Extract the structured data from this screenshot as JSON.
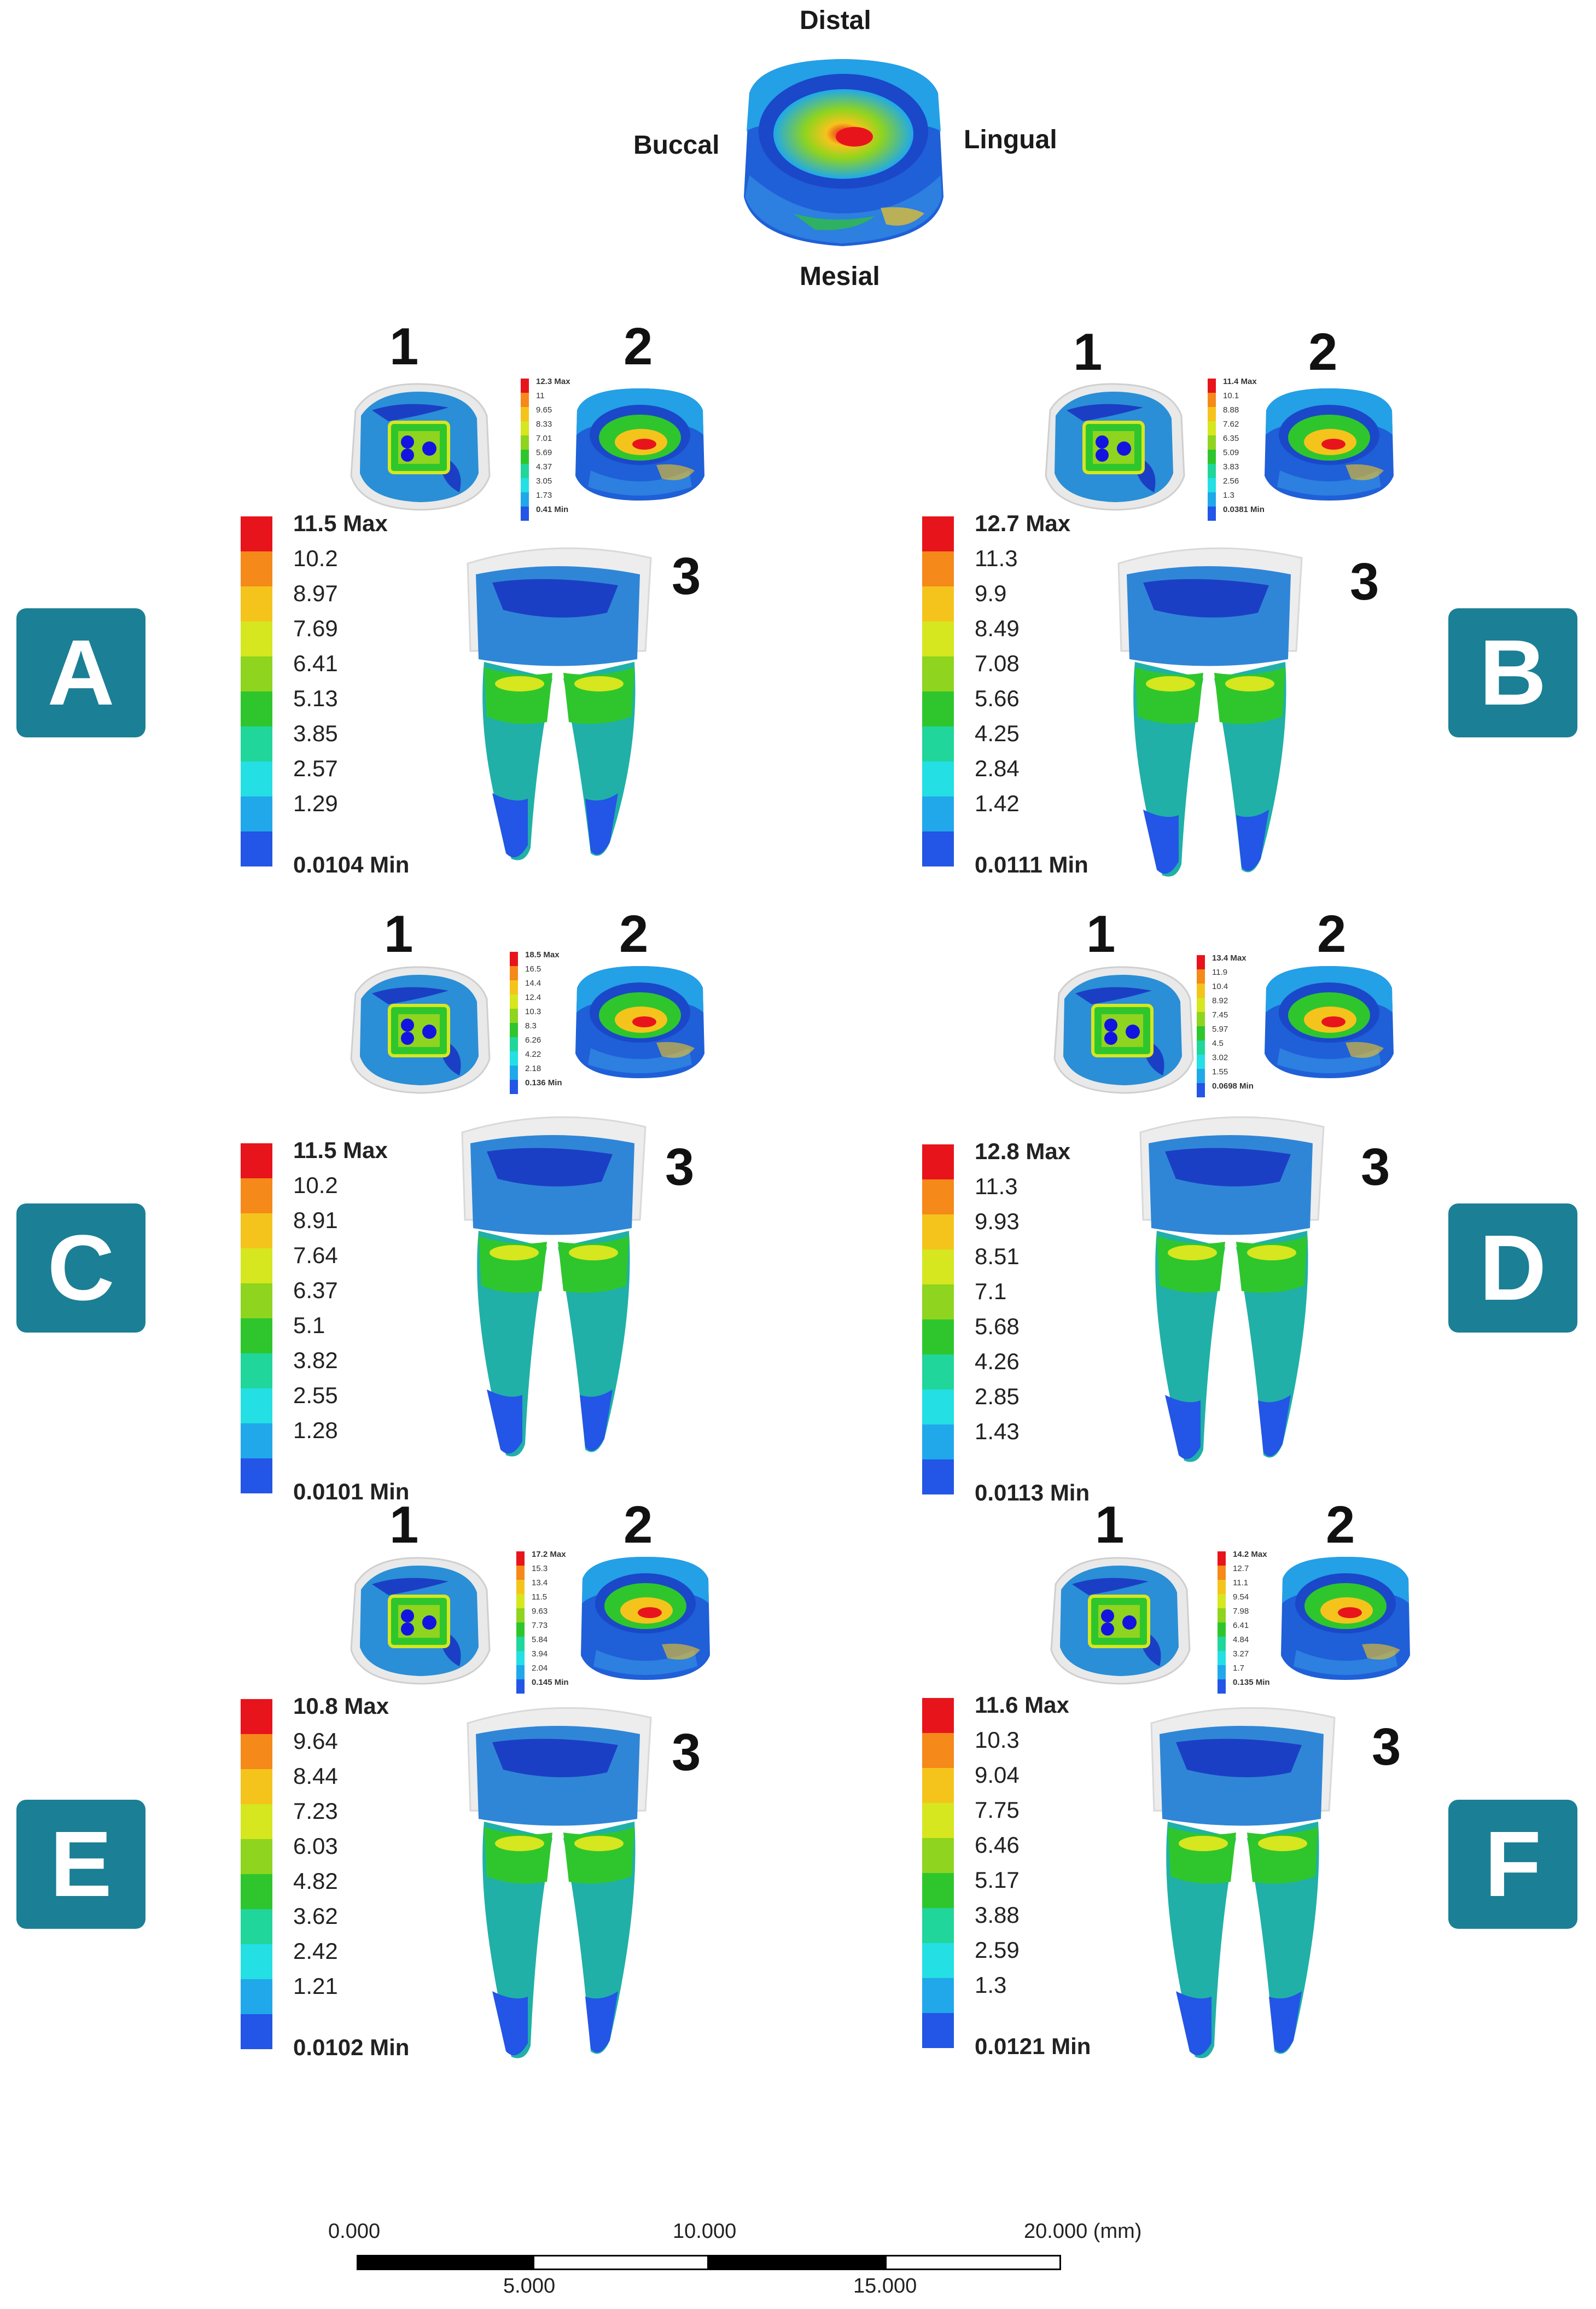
{
  "orientation": {
    "distal": "Distal",
    "buccal": "Buccal",
    "lingual": "Lingual",
    "mesial": "Mesial"
  },
  "view_labels": {
    "view1": "1",
    "view2": "2",
    "view3": "3"
  },
  "legend_colors": [
    "#e8141c",
    "#f5891a",
    "#f5c41c",
    "#d6e61f",
    "#8fd41e",
    "#2fc62d",
    "#20d69a",
    "#24dfe3",
    "#20a8ea",
    "#2355e6",
    "#1414e0"
  ],
  "panels": [
    {
      "id": "A",
      "label": "A",
      "legend": [
        "11.5 Max",
        "10.2",
        "8.97",
        "7.69",
        "6.41",
        "5.13",
        "3.85",
        "2.57",
        "1.29",
        "0.0104 Min"
      ],
      "mini_legend": [
        "12.3 Max",
        "11",
        "9.65",
        "8.33",
        "7.01",
        "5.69",
        "4.37",
        "3.05",
        "1.73",
        "0.41 Min"
      ]
    },
    {
      "id": "B",
      "label": "B",
      "legend": [
        "12.7 Max",
        "11.3",
        "9.9",
        "8.49",
        "7.08",
        "5.66",
        "4.25",
        "2.84",
        "1.42",
        "0.0111 Min"
      ],
      "mini_legend": [
        "11.4 Max",
        "10.1",
        "8.88",
        "7.62",
        "6.35",
        "5.09",
        "3.83",
        "2.56",
        "1.3",
        "0.0381 Min"
      ]
    },
    {
      "id": "C",
      "label": "C",
      "legend": [
        "11.5 Max",
        "10.2",
        "8.91",
        "7.64",
        "6.37",
        "5.1",
        "3.82",
        "2.55",
        "1.28",
        "0.0101 Min"
      ],
      "mini_legend": [
        "18.5 Max",
        "16.5",
        "14.4",
        "12.4",
        "10.3",
        "8.3",
        "6.26",
        "4.22",
        "2.18",
        "0.136 Min"
      ]
    },
    {
      "id": "D",
      "label": "D",
      "legend": [
        "12.8 Max",
        "11.3",
        "9.93",
        "8.51",
        "7.1",
        "5.68",
        "4.26",
        "2.85",
        "1.43",
        "0.0113 Min"
      ],
      "mini_legend": [
        "13.4 Max",
        "11.9",
        "10.4",
        "8.92",
        "7.45",
        "5.97",
        "4.5",
        "3.02",
        "1.55",
        "0.0698 Min"
      ]
    },
    {
      "id": "E",
      "label": "E",
      "legend": [
        "10.8 Max",
        "9.64",
        "8.44",
        "7.23",
        "6.03",
        "4.82",
        "3.62",
        "2.42",
        "1.21",
        "0.0102 Min"
      ],
      "mini_legend": [
        "17.2 Max",
        "15.3",
        "13.4",
        "11.5",
        "9.63",
        "7.73",
        "5.84",
        "3.94",
        "2.04",
        "0.145 Min"
      ]
    },
    {
      "id": "F",
      "label": "F",
      "legend": [
        "11.6 Max",
        "10.3",
        "9.04",
        "7.75",
        "6.46",
        "5.17",
        "3.88",
        "2.59",
        "1.3",
        "0.0121 Min"
      ],
      "mini_legend": [
        "14.2 Max",
        "12.7",
        "11.1",
        "9.54",
        "7.98",
        "6.41",
        "4.84",
        "3.27",
        "1.7",
        "0.135 Min"
      ]
    }
  ],
  "scale_bar": {
    "top_labels": [
      "0.000",
      "10.000",
      "20.000 (mm)"
    ],
    "bottom_labels": [
      "5.000",
      "15.000"
    ]
  }
}
